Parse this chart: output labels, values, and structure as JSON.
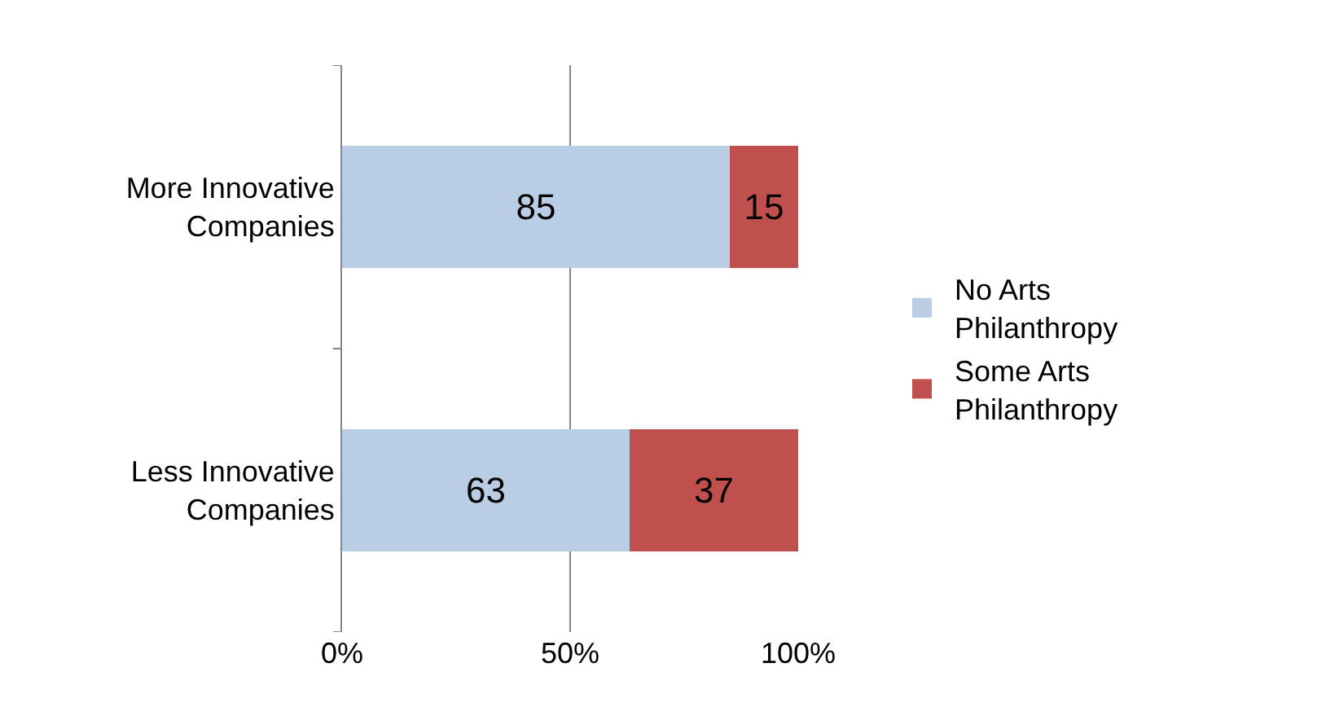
{
  "chart_data": {
    "type": "bar",
    "orientation": "horizontal",
    "stacked": true,
    "categories": [
      "More Innovative Companies",
      "Less Innovative Companies"
    ],
    "series": [
      {
        "name": "No Arts Philanthropy",
        "color": "#b9cde5",
        "values": [
          85,
          63
        ]
      },
      {
        "name": "Some Arts Philanthropy",
        "color": "#c0504d",
        "values": [
          15,
          37
        ]
      }
    ],
    "xlim": [
      0,
      100
    ],
    "xticks": [
      {
        "value": 0,
        "label": "0%"
      },
      {
        "value": 50,
        "label": "50%"
      },
      {
        "value": 100,
        "label": "100%"
      }
    ],
    "data_labels": true,
    "grid": "x",
    "legend": "right"
  }
}
